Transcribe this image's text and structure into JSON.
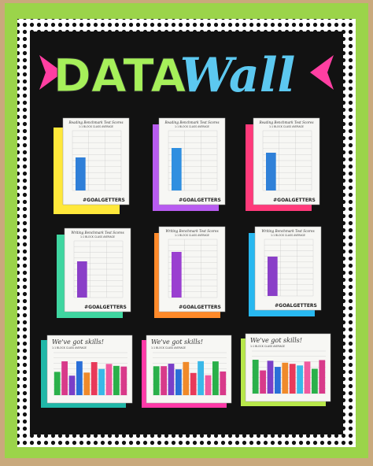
{
  "title": {
    "left": "DATA",
    "right": "Wall"
  },
  "panels": [
    {
      "heading": "Reading Benchmark Test Scores",
      "subheading": "1:1 BLOCK CLASS AVERAGE",
      "tag": "#GOALGETTERS"
    },
    {
      "heading": "Reading Benchmark Test Scores",
      "subheading": "1:1 BLOCK CLASS AVERAGE",
      "tag": "#GOALGETTERS"
    },
    {
      "heading": "Reading Benchmark Test Scores",
      "subheading": "1:1 BLOCK CLASS AVERAGE",
      "tag": "#GOALGETTERS"
    },
    {
      "heading": "Writing Benchmark Test Scores",
      "subheading": "1:1 BLOCK CLASS AVERAGE",
      "tag": "#GOALGETTERS"
    },
    {
      "heading": "Writing Benchmark Test Scores",
      "subheading": "1:1 BLOCK CLASS AVERAGE",
      "tag": "#GOALGETTERS"
    },
    {
      "heading": "Writing Benchmark Test Scores",
      "subheading": "1:1 BLOCK CLASS AVERAGE",
      "tag": "#GOALGETTERS"
    },
    {
      "heading": "We've got skills!",
      "subheading": "1:1 BLOCK CLASS AVERAGE"
    },
    {
      "heading": "We've got skills!",
      "subheading": "1:1 BLOCK CLASS AVERAGE"
    },
    {
      "heading": "We've got skills!",
      "subheading": "1:1 BLOCK CLASS AVERAGE"
    }
  ]
}
